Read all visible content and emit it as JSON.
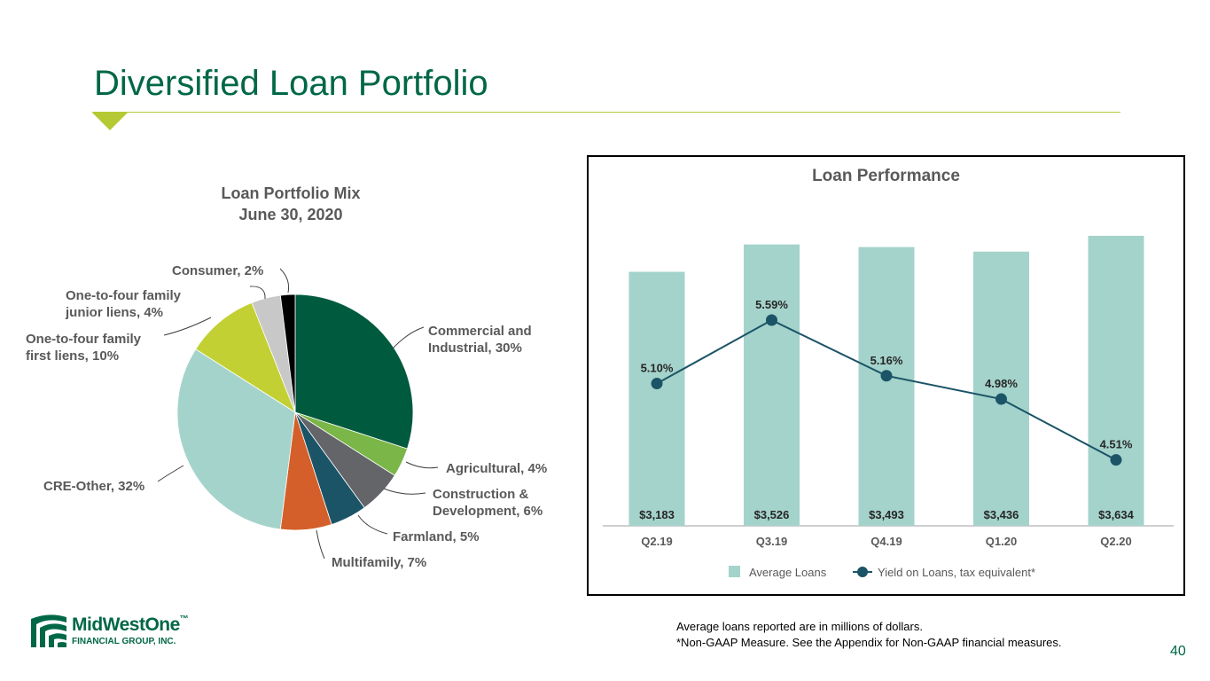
{
  "page": {
    "title": "Diversified Loan Portfolio",
    "page_number": "40",
    "footnotes": [
      "Average loans reported are in millions of dollars.",
      "*Non-GAAP Measure. See the Appendix for Non-GAAP financial measures."
    ],
    "logo": {
      "name": "MidWestOne",
      "tm": "™",
      "subtitle": "FINANCIAL GROUP, INC."
    },
    "colors": {
      "brand_green": "#006747",
      "accent_lime": "#b5c935"
    }
  },
  "chart_data": [
    {
      "type": "pie",
      "title": "Loan Portfolio Mix",
      "subtitle": "June 30, 2020",
      "slices": [
        {
          "label": "Commercial and Industrial, 30%",
          "value": 30,
          "color": "#005a3e"
        },
        {
          "label": "Agricultural, 4%",
          "value": 4,
          "color": "#7ab648"
        },
        {
          "label": "Construction & Development, 6%",
          "value": 6,
          "color": "#646569"
        },
        {
          "label": "Farmland, 5%",
          "value": 5,
          "color": "#1b5467"
        },
        {
          "label": "Multifamily, 7%",
          "value": 7,
          "color": "#d45f2a"
        },
        {
          "label": "CRE-Other, 32%",
          "value": 32,
          "color": "#a4d3cb"
        },
        {
          "label": "One-to-four family first liens, 10%",
          "value": 10,
          "color": "#c2d033"
        },
        {
          "label": "One-to-four family junior liens, 4%",
          "value": 4,
          "color": "#c8c8c8"
        },
        {
          "label": "Consumer, 2%",
          "value": 2,
          "color": "#000000"
        }
      ],
      "label_lines": {
        "commercial": [
          "Commercial and",
          "Industrial, 30%"
        ],
        "agricultural": [
          "Agricultural, 4%"
        ],
        "construction": [
          "Construction &",
          "Development, 6%"
        ],
        "farmland": [
          "Farmland, 5%"
        ],
        "multifamily": [
          "Multifamily, 7%"
        ],
        "cre_other": [
          "CRE-Other, 32%"
        ],
        "first_liens": [
          "One-to-four family",
          "first liens, 10%"
        ],
        "junior_liens": [
          "One-to-four family",
          "junior liens, 4%"
        ],
        "consumer": [
          "Consumer, 2%"
        ]
      }
    },
    {
      "type": "bar",
      "title": "Loan Performance",
      "categories": [
        "Q2.19",
        "Q3.19",
        "Q4.19",
        "Q1.20",
        "Q2.20"
      ],
      "series": [
        {
          "name": "Average Loans",
          "type": "bar",
          "values": [
            3183,
            3526,
            3493,
            3436,
            3634
          ],
          "labels": [
            "$3,183",
            "$3,526",
            "$3,493",
            "$3,436",
            "$3,634"
          ],
          "color": "#a4d3cb"
        },
        {
          "name": "Yield on Loans, tax equivalent*",
          "type": "line",
          "values": [
            5.1,
            5.59,
            5.16,
            4.98,
            4.51
          ],
          "labels": [
            "5.10%",
            "5.59%",
            "5.16%",
            "4.98%",
            "4.51%"
          ],
          "color": "#1b5467"
        }
      ],
      "legend": "bottom",
      "grid": false
    }
  ]
}
